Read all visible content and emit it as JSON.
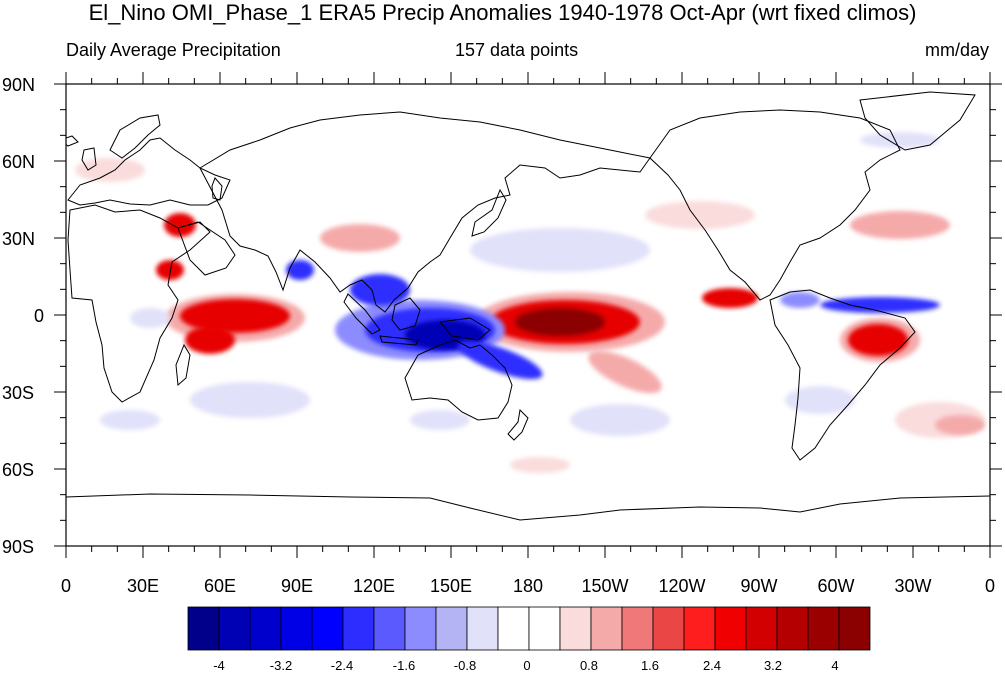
{
  "title": "El_Nino OMI_Phase_1 ERA5 Precip Anomalies 1940-1978 Oct-Apr (wrt fixed climos)",
  "left_subtitle": "Daily Average Precipitation",
  "center_subtitle": "157 data points",
  "right_subtitle": "mm/day",
  "lat_labels": [
    "90N",
    "60N",
    "30N",
    "0",
    "30S",
    "60S",
    "90S"
  ],
  "lon_labels": [
    "0",
    "30E",
    "60E",
    "90E",
    "120E",
    "150E",
    "180",
    "150W",
    "120W",
    "90W",
    "60W",
    "30W",
    "0"
  ],
  "colorbar": {
    "colors": [
      "#00008b",
      "#0000b4",
      "#0000cd",
      "#0000e6",
      "#0000ff",
      "#2d2dff",
      "#5a5aff",
      "#8c8cff",
      "#b4b4f5",
      "#e1e1fa",
      "#ffffff",
      "#ffffff",
      "#fadcdc",
      "#f5aaaa",
      "#f07878",
      "#eb4646",
      "#ff1e1e",
      "#f00000",
      "#d20000",
      "#b40000",
      "#9b0000",
      "#8b0000"
    ],
    "tick_labels": [
      "-4",
      "-3.2",
      "-2.4",
      "-1.6",
      "-0.8",
      "0",
      "0.8",
      "1.6",
      "2.4",
      "3.2",
      "4"
    ]
  },
  "map_colors": {
    "dark_red": "#8b0000",
    "red": "#e60000",
    "light_red": "#f5aaaa",
    "pale_red": "#fadcdc",
    "dark_blue": "#0000b4",
    "blue": "#2d2dff",
    "light_blue": "#8c8cff",
    "pale_blue": "#e1e1fa",
    "coastline": "#000000"
  }
}
